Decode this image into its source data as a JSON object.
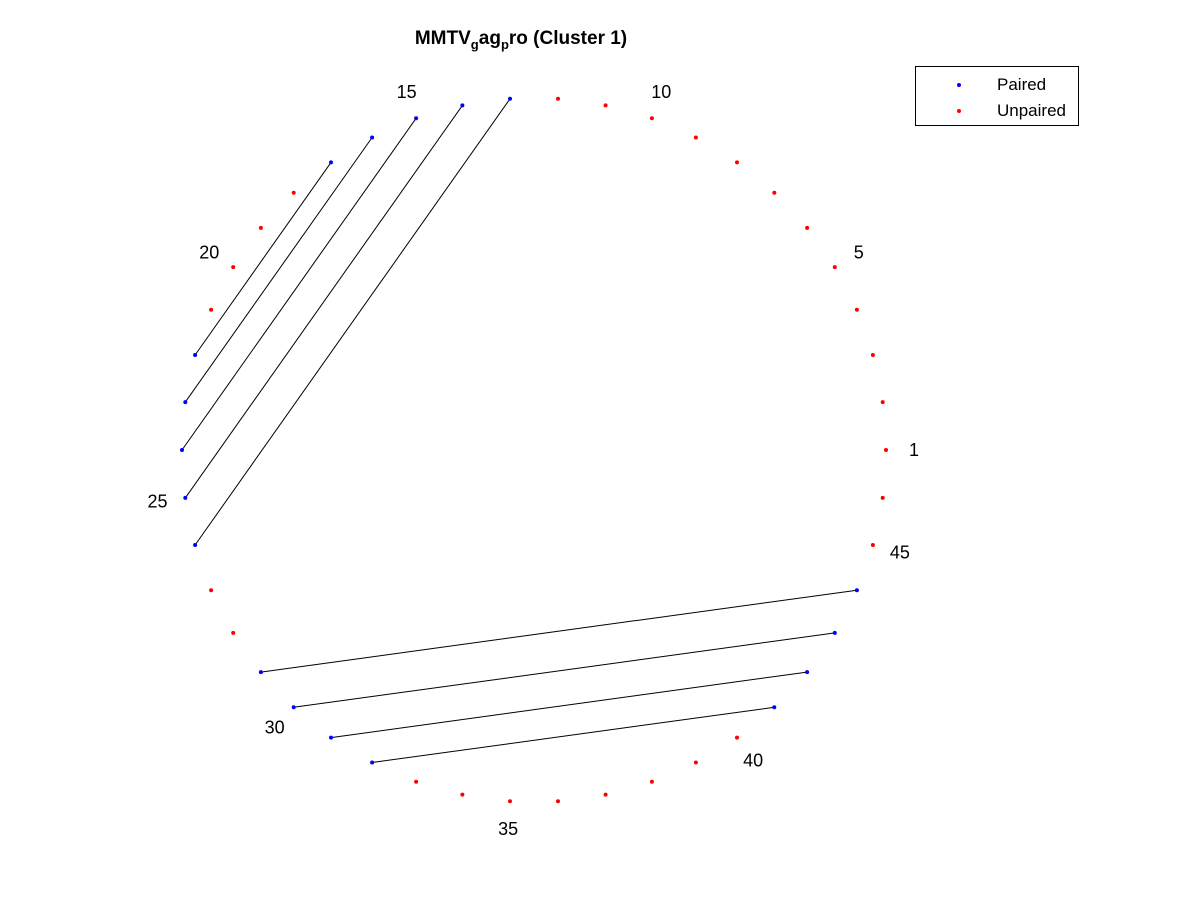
{
  "title": {
    "base": "MMTV",
    "sub1": "g",
    "mid": "ag",
    "sub2": "p",
    "tail": "ro (Cluster 1)"
  },
  "legend": {
    "paired_label": "Paired",
    "unpaired_label": "Unpaired"
  },
  "colors": {
    "paired": "#0000ff",
    "unpaired": "#ff0000",
    "bond": "#000000"
  },
  "chart_data": {
    "type": "arc-diagram",
    "node_count": 46,
    "node_labels": [
      "1",
      "5",
      "10",
      "15",
      "20",
      "25",
      "30",
      "35",
      "40",
      "45"
    ],
    "labeled_positions": [
      1,
      5,
      10,
      15,
      20,
      25,
      30,
      35,
      40,
      45
    ],
    "paired_positions": [
      13,
      14,
      15,
      16,
      17,
      22,
      23,
      24,
      25,
      26,
      29,
      30,
      31,
      32,
      41,
      42,
      43,
      44
    ],
    "pairs": [
      [
        13,
        26
      ],
      [
        14,
        25
      ],
      [
        15,
        24
      ],
      [
        16,
        23
      ],
      [
        17,
        22
      ],
      [
        29,
        44
      ],
      [
        30,
        43
      ],
      [
        31,
        42
      ],
      [
        32,
        41
      ]
    ],
    "legend_placement": "top-right"
  }
}
